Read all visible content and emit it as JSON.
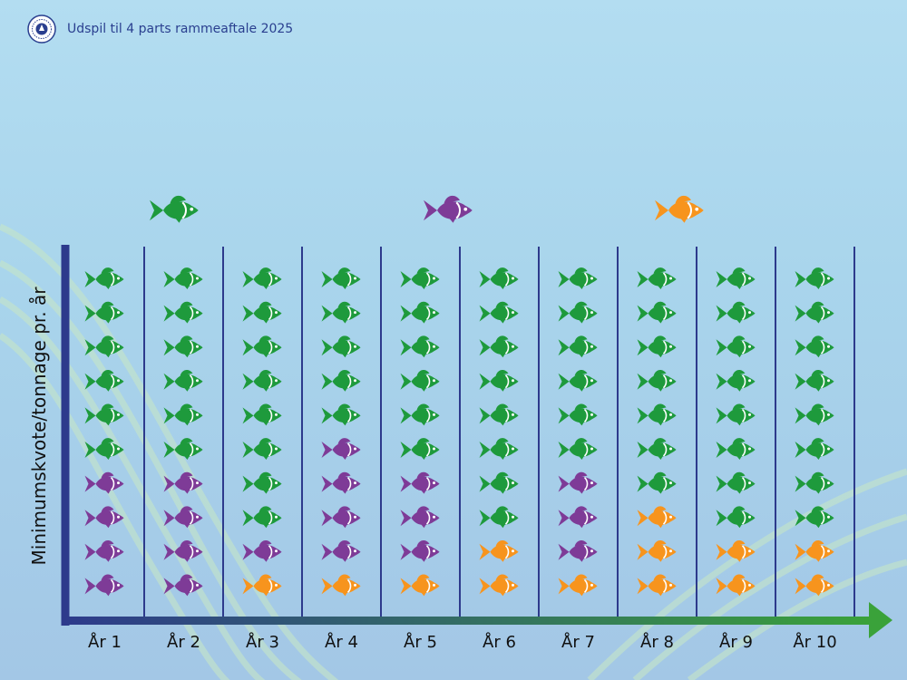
{
  "header": {
    "title": "Udspil til 4 parts rammeaftale 2025",
    "logo_icon": "seal-logo-icon"
  },
  "chart_data": {
    "type": "pictograph",
    "ylabel": "Minimumskvote/tonnage pr. år",
    "xlabel": "",
    "categories": [
      "År 1",
      "År 2",
      "År 3",
      "År 4",
      "År 5",
      "År 6",
      "År 7",
      "År 8",
      "År 9",
      "År 10"
    ],
    "units_per_year": 10,
    "series": [
      {
        "color": "#1e9a3c",
        "values": [
          6,
          6,
          8,
          5,
          6,
          8,
          6,
          7,
          8,
          8
        ]
      },
      {
        "color": "#7e3b97",
        "values": [
          4,
          4,
          1,
          4,
          3,
          0,
          3,
          0,
          0,
          0
        ]
      },
      {
        "color": "#f7941d",
        "values": [
          0,
          0,
          1,
          1,
          1,
          2,
          1,
          3,
          2,
          2
        ]
      }
    ],
    "legend_icons": [
      "green-fish-icon",
      "purple-fish-icon",
      "orange-fish-icon"
    ],
    "colors": {
      "axis_y": "#2d3a8c",
      "axis_x_start": "#2d3a8c",
      "axis_x_end": "#3aa23a",
      "divider": "#2d3a8c"
    }
  }
}
